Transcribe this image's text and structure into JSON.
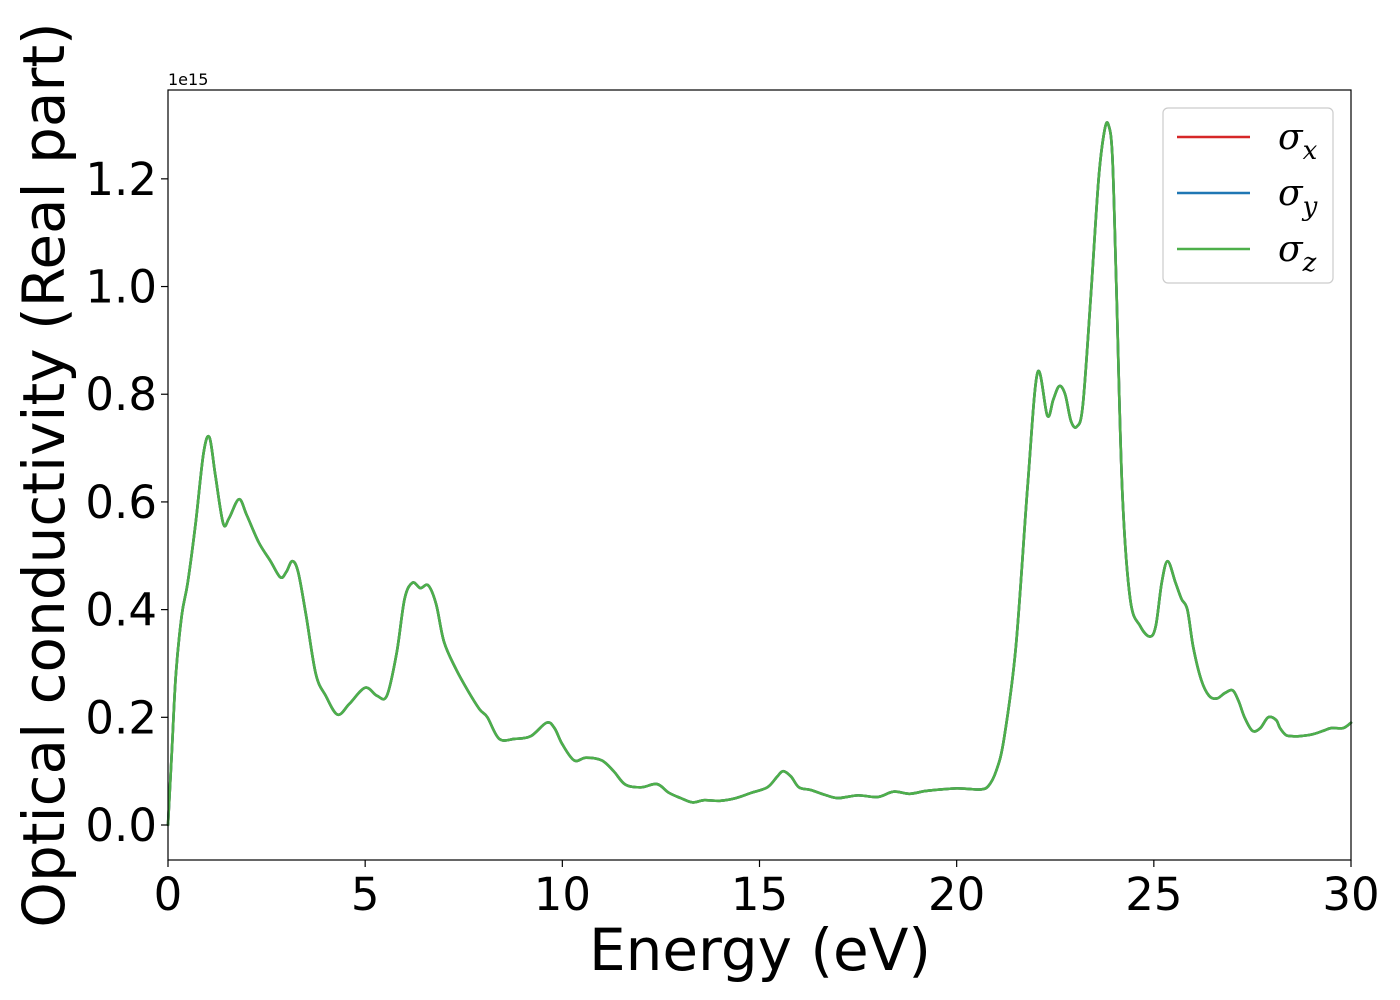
{
  "chart_data": {
    "type": "line",
    "xlabel": "Energy (eV)",
    "ylabel": "Optical conductivity (Real part)",
    "y_offset_text": "1e15",
    "y_scale": 1000000000000000.0,
    "xlim": [
      0,
      30
    ],
    "ylim": [
      -0.065,
      1.365
    ],
    "xticks": [
      0,
      5,
      10,
      15,
      20,
      25,
      30
    ],
    "xtick_labels": [
      "0",
      "5",
      "10",
      "15",
      "20",
      "25",
      "30"
    ],
    "yticks": [
      0.0,
      0.2,
      0.4,
      0.6,
      0.8,
      1.0,
      1.2
    ],
    "ytick_labels": [
      "0.0",
      "0.2",
      "0.4",
      "0.6",
      "0.8",
      "1.0",
      "1.2"
    ],
    "grid": false,
    "legend_position": "top-right",
    "series": [
      {
        "name": "σx",
        "symbol": "σ",
        "sub": "x",
        "color": "#d62728",
        "data_ref": "curve"
      },
      {
        "name": "σy",
        "symbol": "σ",
        "sub": "y",
        "color": "#1f77b4",
        "data_ref": "curve"
      },
      {
        "name": "σz",
        "symbol": "σ",
        "sub": "z",
        "color": "#4daf4a",
        "data_ref": "curve"
      }
    ],
    "curve": {
      "x": [
        0.0,
        0.1,
        0.2,
        0.35,
        0.5,
        0.7,
        0.9,
        1.05,
        1.2,
        1.4,
        1.55,
        1.8,
        2.0,
        2.3,
        2.6,
        2.85,
        3.0,
        3.15,
        3.3,
        3.5,
        3.75,
        4.0,
        4.3,
        4.6,
        5.0,
        5.3,
        5.55,
        5.8,
        6.0,
        6.2,
        6.4,
        6.6,
        6.8,
        7.0,
        7.3,
        7.6,
        7.9,
        8.1,
        8.4,
        8.8,
        9.2,
        9.6,
        9.8,
        10.0,
        10.3,
        10.6,
        11.0,
        11.3,
        11.6,
        12.0,
        12.4,
        12.7,
        13.0,
        13.3,
        13.6,
        14.0,
        14.4,
        14.8,
        15.2,
        15.45,
        15.6,
        15.8,
        16.0,
        16.3,
        16.7,
        17.0,
        17.5,
        18.0,
        18.4,
        18.8,
        19.2,
        19.6,
        20.0,
        20.3,
        20.6,
        20.8,
        21.0,
        21.2,
        21.5,
        21.8,
        22.05,
        22.3,
        22.45,
        22.6,
        22.75,
        22.9,
        23.05,
        23.2,
        23.4,
        23.6,
        23.75,
        23.85,
        23.95,
        24.05,
        24.2,
        24.4,
        24.65,
        24.9,
        25.05,
        25.2,
        25.35,
        25.55,
        25.7,
        25.85,
        26.0,
        26.2,
        26.4,
        26.6,
        26.8,
        27.0,
        27.15,
        27.3,
        27.5,
        27.7,
        27.9,
        28.1,
        28.2,
        28.35,
        28.5,
        28.7,
        29.0,
        29.3,
        29.5,
        29.8,
        30.0
      ],
      "y": [
        0.0,
        0.14,
        0.28,
        0.39,
        0.45,
        0.56,
        0.69,
        0.72,
        0.65,
        0.56,
        0.57,
        0.605,
        0.575,
        0.525,
        0.49,
        0.46,
        0.47,
        0.49,
        0.47,
        0.39,
        0.28,
        0.24,
        0.205,
        0.225,
        0.255,
        0.24,
        0.24,
        0.32,
        0.42,
        0.45,
        0.44,
        0.445,
        0.41,
        0.34,
        0.29,
        0.25,
        0.215,
        0.2,
        0.16,
        0.16,
        0.165,
        0.19,
        0.18,
        0.15,
        0.12,
        0.125,
        0.12,
        0.1,
        0.075,
        0.07,
        0.076,
        0.06,
        0.05,
        0.042,
        0.046,
        0.045,
        0.05,
        0.06,
        0.07,
        0.09,
        0.1,
        0.09,
        0.07,
        0.065,
        0.055,
        0.05,
        0.055,
        0.052,
        0.062,
        0.058,
        0.063,
        0.066,
        0.068,
        0.067,
        0.066,
        0.072,
        0.1,
        0.16,
        0.33,
        0.63,
        0.84,
        0.76,
        0.79,
        0.815,
        0.8,
        0.75,
        0.74,
        0.78,
        0.98,
        1.2,
        1.29,
        1.3,
        1.24,
        1.0,
        0.62,
        0.42,
        0.37,
        0.35,
        0.37,
        0.45,
        0.49,
        0.45,
        0.42,
        0.4,
        0.33,
        0.27,
        0.24,
        0.235,
        0.245,
        0.25,
        0.23,
        0.2,
        0.175,
        0.18,
        0.2,
        0.195,
        0.18,
        0.167,
        0.165,
        0.165,
        0.168,
        0.175,
        0.18,
        0.18,
        0.19
      ]
    }
  }
}
